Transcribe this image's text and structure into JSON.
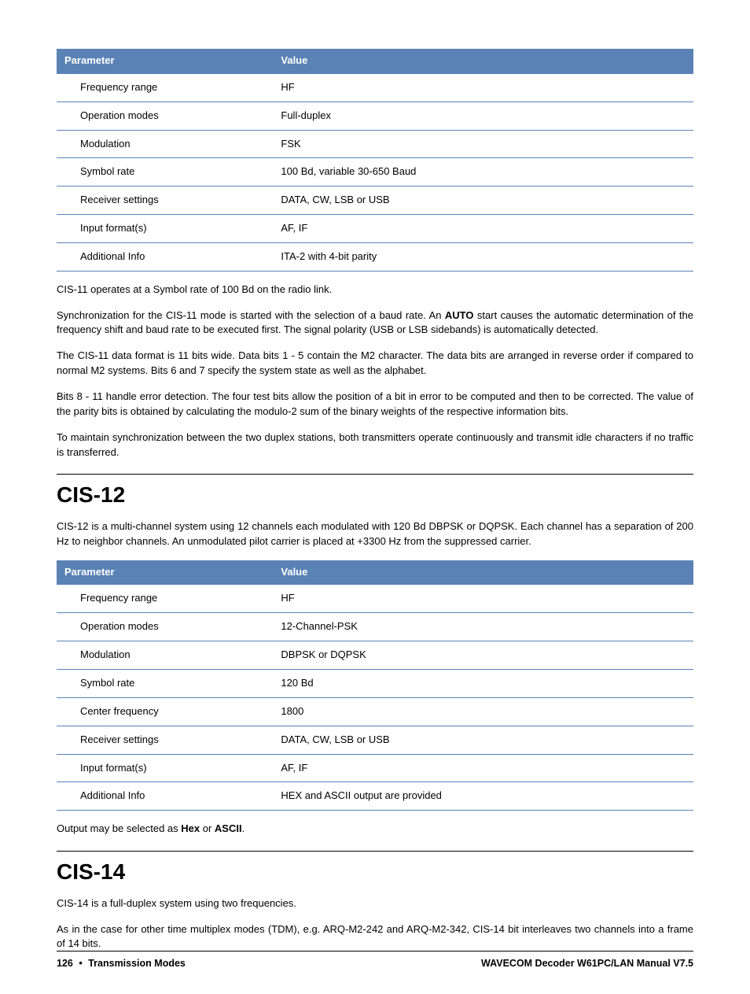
{
  "table1_header_param": "Parameter",
  "table1_header_value": "Value",
  "t1r0p": "Frequency range",
  "t1r0v": "HF",
  "t1r1p": "Operation modes",
  "t1r1v": "Full-duplex",
  "t1r2p": "Modulation",
  "t1r2v": "FSK",
  "t1r3p": "Symbol rate",
  "t1r3v": "100 Bd, variable 30-650 Baud",
  "t1r4p": "Receiver settings",
  "t1r4v": "DATA, CW, LSB or USB",
  "t1r5p": "Input format(s)",
  "t1r5v": "AF, IF",
  "t1r6p": "Additional Info",
  "t1r6v": "ITA-2 with 4-bit parity",
  "p1": "CIS-11 operates at a Symbol rate of 100 Bd on the radio link.",
  "p2a": "Synchronization for the CIS-11 mode is started with the selection of a baud rate. An ",
  "p2b_bold": "AUTO",
  "p2c": " start causes the automatic determination of the frequency shift and baud rate to be executed first. The signal polarity (USB or LSB sidebands) is automatically detected.",
  "p3": "The CIS-11 data format is 11 bits wide. Data bits 1 - 5 contain the M2 character. The data bits are arranged in reverse order if compared to normal M2 systems. Bits 6 and 7 specify the system state as well as the alphabet.",
  "p4": "Bits 8 - 11 handle error detection. The four test bits allow the position of a bit in error to be computed and then to be corrected. The value of the parity bits is obtained by calculating the modulo-2 sum of the binary weights of the respective information bits.",
  "p5": "To maintain synchronization between the two duplex stations, both transmitters operate continuously and transmit idle characters if no traffic is transferred.",
  "h2a": "CIS-12",
  "p6": "CIS-12 is a multi-channel system using 12 channels each modulated with 120 Bd DBPSK or DQPSK. Each channel has a separation of 200 Hz to neighbor channels. An unmodulated pilot carrier is placed at +3300 Hz from the suppressed carrier.",
  "table2_header_param": "Parameter",
  "table2_header_value": "Value",
  "t2r0p": "Frequency range",
  "t2r0v": "HF",
  "t2r1p": "Operation modes",
  "t2r1v": "12-Channel-PSK",
  "t2r2p": "Modulation",
  "t2r2v": "DBPSK or DQPSK",
  "t2r3p": "Symbol rate",
  "t2r3v": "120 Bd",
  "t2r4p": "Center frequency",
  "t2r4v": "1800",
  "t2r5p": "Receiver settings",
  "t2r5v": "DATA, CW, LSB or USB",
  "t2r6p": "Input format(s)",
  "t2r6v": "AF, IF",
  "t2r7p": "Additional Info",
  "t2r7v": "HEX and ASCII output are provided",
  "p7a": "Output may be selected as ",
  "p7b_bold": "Hex",
  "p7c": " or ",
  "p7d_bold": "ASCII",
  "p7e": ".",
  "h2b": "CIS-14",
  "p8": "CIS-14 is a full-duplex system using two frequencies.",
  "p9": "As in the case for other time multiplex modes (TDM), e.g. ARQ-M2-242 and ARQ-M2-342, CIS-14 bit interleaves two channels into a frame of 14 bits.",
  "footer_page": "126",
  "footer_section": "Transmission Modes",
  "footer_right": "WAVECOM Decoder W61PC/LAN Manual V7.5"
}
